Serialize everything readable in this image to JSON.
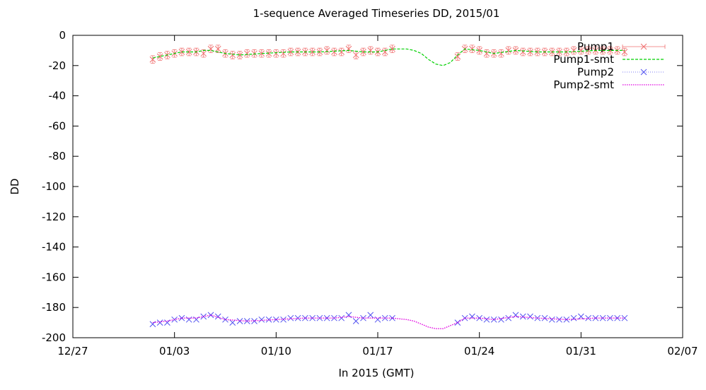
{
  "chart_data": {
    "type": "line",
    "title": "1-sequence Averaged Timeseries DD, 2015/01",
    "xlabel": "In 2015 (GMT)",
    "ylabel": "DD",
    "xlim": [
      "2014-12-27",
      "2015-02-07"
    ],
    "ylim": [
      -200,
      0
    ],
    "x_ticks": [
      {
        "date": "2014-12-27",
        "label": "12/27"
      },
      {
        "date": "2015-01-03",
        "label": "01/03"
      },
      {
        "date": "2015-01-10",
        "label": "01/10"
      },
      {
        "date": "2015-01-17",
        "label": "01/17"
      },
      {
        "date": "2015-01-24",
        "label": "01/24"
      },
      {
        "date": "2015-01-31",
        "label": "01/31"
      },
      {
        "date": "2015-02-07",
        "label": "02/07"
      }
    ],
    "y_ticks": [
      0,
      -20,
      -40,
      -60,
      -80,
      -100,
      -120,
      -140,
      -160,
      -180,
      -200
    ],
    "grid": false,
    "legend_position": "top-right",
    "colors": {
      "pump1": "#f07070",
      "pump1_smt": "#00d000",
      "pump2": "#5050f0",
      "pump2_smt": "#e000e0"
    },
    "series": [
      {
        "name": "Pump1",
        "style": "points-errorbars",
        "x": [
          "2015-01-01 12:00",
          "2015-01-02 00:00",
          "2015-01-02 12:00",
          "2015-01-03 00:00",
          "2015-01-03 12:00",
          "2015-01-04 00:00",
          "2015-01-04 12:00",
          "2015-01-05 00:00",
          "2015-01-05 12:00",
          "2015-01-06 00:00",
          "2015-01-06 12:00",
          "2015-01-07 00:00",
          "2015-01-07 12:00",
          "2015-01-08 00:00",
          "2015-01-08 12:00",
          "2015-01-09 00:00",
          "2015-01-09 12:00",
          "2015-01-10 00:00",
          "2015-01-10 12:00",
          "2015-01-11 00:00",
          "2015-01-11 12:00",
          "2015-01-12 00:00",
          "2015-01-12 12:00",
          "2015-01-13 00:00",
          "2015-01-13 12:00",
          "2015-01-14 00:00",
          "2015-01-14 12:00",
          "2015-01-15 00:00",
          "2015-01-15 12:00",
          "2015-01-16 00:00",
          "2015-01-16 12:00",
          "2015-01-17 00:00",
          "2015-01-17 12:00",
          "2015-01-18 00:00",
          "2015-01-22 12:00",
          "2015-01-23 00:00",
          "2015-01-23 12:00",
          "2015-01-24 00:00",
          "2015-01-24 12:00",
          "2015-01-25 00:00",
          "2015-01-25 12:00",
          "2015-01-26 00:00",
          "2015-01-26 12:00",
          "2015-01-27 00:00",
          "2015-01-27 12:00",
          "2015-01-28 00:00",
          "2015-01-28 12:00",
          "2015-01-29 00:00",
          "2015-01-29 12:00",
          "2015-01-30 00:00",
          "2015-01-30 12:00",
          "2015-01-31 00:00",
          "2015-01-31 12:00",
          "2015-02-01 00:00",
          "2015-02-01 12:00",
          "2015-02-02 00:00",
          "2015-02-02 12:00",
          "2015-02-03 00:00"
        ],
        "y": [
          -16,
          -14,
          -13,
          -12,
          -11,
          -11,
          -11,
          -12,
          -9,
          -9,
          -12,
          -13,
          -13,
          -12,
          -12,
          -12,
          -12,
          -12,
          -12,
          -11,
          -11,
          -11,
          -11,
          -11,
          -10,
          -11,
          -11,
          -9,
          -13,
          -11,
          -10,
          -11,
          -11,
          -9,
          -14,
          -9,
          -9,
          -10,
          -12,
          -12,
          -12,
          -10,
          -10,
          -11,
          -11,
          -11,
          -11,
          -11,
          -11,
          -11,
          -10,
          -10,
          -10,
          -10,
          -10,
          -10,
          -10,
          -11
        ],
        "err": 2.5
      },
      {
        "name": "Pump1-smt",
        "style": "dashed-line",
        "x": [
          "2015-01-01 12:00",
          "2015-01-02 12:00",
          "2015-01-03 12:00",
          "2015-01-04 12:00",
          "2015-01-05 00:00",
          "2015-01-05 12:00",
          "2015-01-06 12:00",
          "2015-01-07 12:00",
          "2015-01-09 00:00",
          "2015-01-11 00:00",
          "2015-01-13 00:00",
          "2015-01-15 00:00",
          "2015-01-16 00:00",
          "2015-01-17 00:00",
          "2015-01-18 00:00",
          "2015-01-19 00:00",
          "2015-01-19 12:00",
          "2015-01-20 00:00",
          "2015-01-20 12:00",
          "2015-01-21 00:00",
          "2015-01-21 12:00",
          "2015-01-22 00:00",
          "2015-01-22 12:00",
          "2015-01-23 00:00",
          "2015-01-24 00:00",
          "2015-01-25 00:00",
          "2015-01-26 12:00",
          "2015-01-28 00:00",
          "2015-01-30 00:00",
          "2015-02-01 00:00",
          "2015-02-03 00:00"
        ],
        "y": [
          -15,
          -13,
          -11,
          -11,
          -10,
          -10,
          -12,
          -13,
          -12,
          -11,
          -11,
          -10,
          -11,
          -11,
          -9,
          -9,
          -10,
          -12,
          -16,
          -19,
          -20,
          -18,
          -13,
          -9,
          -10,
          -12,
          -10,
          -11,
          -11,
          -10,
          -10
        ]
      },
      {
        "name": "Pump2",
        "style": "points",
        "x": [
          "2015-01-01 12:00",
          "2015-01-02 00:00",
          "2015-01-02 12:00",
          "2015-01-03 00:00",
          "2015-01-03 12:00",
          "2015-01-04 00:00",
          "2015-01-04 12:00",
          "2015-01-05 00:00",
          "2015-01-05 12:00",
          "2015-01-06 00:00",
          "2015-01-06 12:00",
          "2015-01-07 00:00",
          "2015-01-07 12:00",
          "2015-01-08 00:00",
          "2015-01-08 12:00",
          "2015-01-09 00:00",
          "2015-01-09 12:00",
          "2015-01-10 00:00",
          "2015-01-10 12:00",
          "2015-01-11 00:00",
          "2015-01-11 12:00",
          "2015-01-12 00:00",
          "2015-01-12 12:00",
          "2015-01-13 00:00",
          "2015-01-13 12:00",
          "2015-01-14 00:00",
          "2015-01-14 12:00",
          "2015-01-15 00:00",
          "2015-01-15 12:00",
          "2015-01-16 00:00",
          "2015-01-16 12:00",
          "2015-01-17 00:00",
          "2015-01-17 12:00",
          "2015-01-18 00:00",
          "2015-01-22 12:00",
          "2015-01-23 00:00",
          "2015-01-23 12:00",
          "2015-01-24 00:00",
          "2015-01-24 12:00",
          "2015-01-25 00:00",
          "2015-01-25 12:00",
          "2015-01-26 00:00",
          "2015-01-26 12:00",
          "2015-01-27 00:00",
          "2015-01-27 12:00",
          "2015-01-28 00:00",
          "2015-01-28 12:00",
          "2015-01-29 00:00",
          "2015-01-29 12:00",
          "2015-01-30 00:00",
          "2015-01-30 12:00",
          "2015-01-31 00:00",
          "2015-01-31 12:00",
          "2015-02-01 00:00",
          "2015-02-01 12:00",
          "2015-02-02 00:00",
          "2015-02-02 12:00",
          "2015-02-03 00:00"
        ],
        "y": [
          -191,
          -190,
          -190,
          -188,
          -187,
          -188,
          -188,
          -186,
          -185,
          -186,
          -188,
          -190,
          -189,
          -189,
          -189,
          -188,
          -188,
          -188,
          -188,
          -187,
          -187,
          -187,
          -187,
          -187,
          -187,
          -187,
          -187,
          -185,
          -189,
          -187,
          -185,
          -188,
          -187,
          -187,
          -190,
          -187,
          -186,
          -187,
          -188,
          -188,
          -188,
          -187,
          -185,
          -186,
          -186,
          -187,
          -187,
          -188,
          -188,
          -188,
          -187,
          -186,
          -187,
          -187,
          -187,
          -187,
          -187,
          -187
        ]
      },
      {
        "name": "Pump2-smt",
        "style": "dotted-line",
        "x": [
          "2015-01-01 12:00",
          "2015-01-02 12:00",
          "2015-01-03 12:00",
          "2015-01-04 12:00",
          "2015-01-05 12:00",
          "2015-01-06 12:00",
          "2015-01-08 00:00",
          "2015-01-10 00:00",
          "2015-01-12 00:00",
          "2015-01-14 00:00",
          "2015-01-15 00:00",
          "2015-01-16 00:00",
          "2015-01-17 00:00",
          "2015-01-18 00:00",
          "2015-01-19 00:00",
          "2015-01-19 12:00",
          "2015-01-20 00:00",
          "2015-01-20 12:00",
          "2015-01-21 00:00",
          "2015-01-21 12:00",
          "2015-01-22 00:00",
          "2015-01-22 12:00",
          "2015-01-23 00:00",
          "2015-01-24 00:00",
          "2015-01-25 00:00",
          "2015-01-26 12:00",
          "2015-01-28 00:00",
          "2015-01-30 00:00",
          "2015-02-01 00:00",
          "2015-02-03 00:00"
        ],
        "y": [
          -190,
          -189,
          -187,
          -187,
          -185,
          -188,
          -189,
          -188,
          -187,
          -187,
          -186,
          -187,
          -187,
          -187,
          -188,
          -189,
          -191,
          -193,
          -194,
          -194,
          -192,
          -190,
          -187,
          -187,
          -188,
          -186,
          -187,
          -188,
          -187,
          -187
        ]
      }
    ]
  }
}
